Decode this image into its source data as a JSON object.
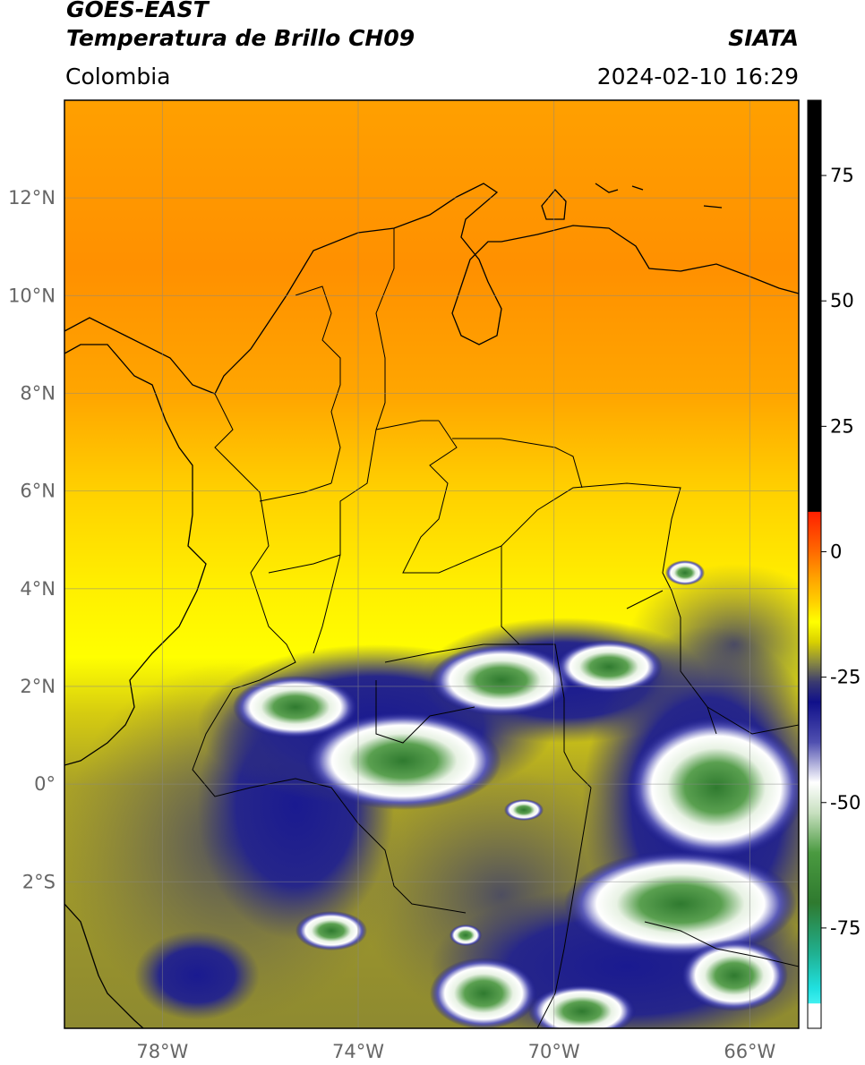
{
  "header": {
    "line1": "GOES-EAST",
    "line2": "Temperatura de Brillo CH09",
    "region": "Colombia",
    "agency": "SIATA",
    "datetime": "2024-02-10 16:29"
  },
  "axes": {
    "lat_ticks": [
      {
        "value": 12,
        "label": "12°N"
      },
      {
        "value": 10,
        "label": "10°N"
      },
      {
        "value": 8,
        "label": "8°N"
      },
      {
        "value": 6,
        "label": "6°N"
      },
      {
        "value": 4,
        "label": "4°N"
      },
      {
        "value": 2,
        "label": "2°N"
      },
      {
        "value": 0,
        "label": "0°"
      },
      {
        "value": -2,
        "label": "2°S"
      }
    ],
    "lon_ticks": [
      {
        "value": -78,
        "label": "78°W"
      },
      {
        "value": -74,
        "label": "74°W"
      },
      {
        "value": -70,
        "label": "70°W"
      },
      {
        "value": -66,
        "label": "66°W"
      }
    ],
    "lat_range": [
      -5,
      14
    ],
    "lon_range": [
      -80,
      -65
    ]
  },
  "colorbar": {
    "range": [
      -95,
      90
    ],
    "ticks": [
      {
        "value": 75,
        "label": "75"
      },
      {
        "value": 50,
        "label": "50"
      },
      {
        "value": 25,
        "label": "25"
      },
      {
        "value": 0,
        "label": "0"
      },
      {
        "value": -25,
        "label": "-25"
      },
      {
        "value": -50,
        "label": "-50"
      },
      {
        "value": -75,
        "label": "-75"
      }
    ],
    "stops": [
      {
        "value": 90,
        "color": "#000000"
      },
      {
        "value": 8,
        "color": "#000000"
      },
      {
        "value": 7.9,
        "color": "#ff2000"
      },
      {
        "value": 0,
        "color": "#ff6a00"
      },
      {
        "value": -5,
        "color": "#ffa000"
      },
      {
        "value": -10,
        "color": "#ffd000"
      },
      {
        "value": -14,
        "color": "#ffff00"
      },
      {
        "value": -18,
        "color": "#d8d000"
      },
      {
        "value": -22,
        "color": "#8a8a40"
      },
      {
        "value": -26,
        "color": "#3a3a70"
      },
      {
        "value": -30,
        "color": "#10108a"
      },
      {
        "value": -38,
        "color": "#5050b0"
      },
      {
        "value": -46,
        "color": "#ffffff"
      },
      {
        "value": -52,
        "color": "#c8e0c0"
      },
      {
        "value": -60,
        "color": "#4a9a40"
      },
      {
        "value": -70,
        "color": "#2f7a2f"
      },
      {
        "value": -80,
        "color": "#20b090"
      },
      {
        "value": -87,
        "color": "#20e0e0"
      },
      {
        "value": -90,
        "color": "#40f0f0"
      },
      {
        "value": -90.1,
        "color": "#ffffff"
      },
      {
        "value": -95,
        "color": "#ffffff"
      }
    ]
  },
  "colors": {
    "frame": "#000000",
    "grid": "#888888",
    "coast": "#000000"
  }
}
